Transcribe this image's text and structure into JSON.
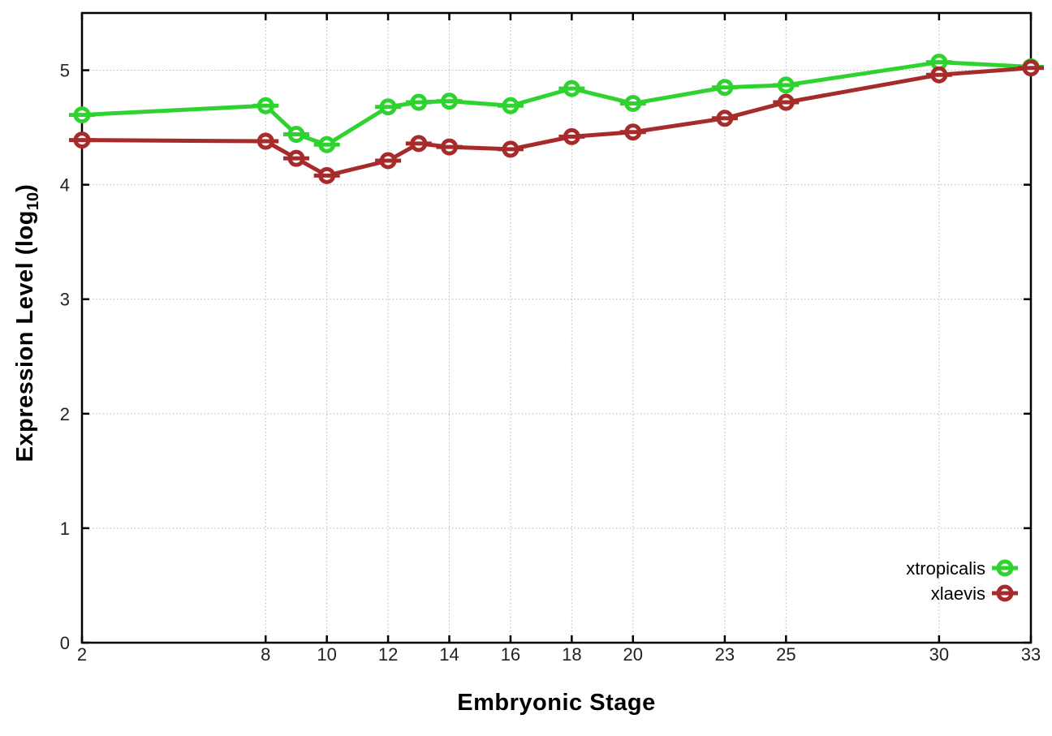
{
  "labels": {
    "ylabel_pre": "Expression Level (log",
    "ylabel_sub": "10",
    "ylabel_post": ")"
  },
  "chart_data": {
    "type": "line",
    "title": "",
    "xlabel": "Embryonic Stage",
    "ylabel": "Expression Level (log10)",
    "x": [
      2,
      8,
      9,
      10,
      12,
      13,
      14,
      16,
      18,
      20,
      23,
      25,
      30,
      33
    ],
    "xticks": [
      2,
      8,
      10,
      12,
      14,
      16,
      18,
      20,
      23,
      25,
      30,
      33
    ],
    "yticks": [
      0,
      1,
      2,
      3,
      4,
      5
    ],
    "xlim": [
      2,
      33
    ],
    "ylim": [
      0,
      5.5
    ],
    "grid": true,
    "legend_position": "inside bottom-right",
    "series": [
      {
        "name": "xtropicalis",
        "color": "#2fd32f",
        "marker": "open-circle-hline",
        "values": [
          4.61,
          4.69,
          4.44,
          4.35,
          4.68,
          4.72,
          4.73,
          4.69,
          4.84,
          4.71,
          4.85,
          4.87,
          5.07,
          5.03
        ]
      },
      {
        "name": "xlaevis",
        "color": "#a62b2b",
        "marker": "open-circle-hline",
        "values": [
          4.39,
          4.38,
          4.23,
          4.08,
          4.21,
          4.36,
          4.33,
          4.31,
          4.42,
          4.46,
          4.58,
          4.72,
          4.96,
          5.02
        ]
      }
    ],
    "style": {
      "background": "#ffffff",
      "grid_color": "#b5b5b5",
      "axis_color": "#000000",
      "tick_label_color": "#222222"
    }
  }
}
